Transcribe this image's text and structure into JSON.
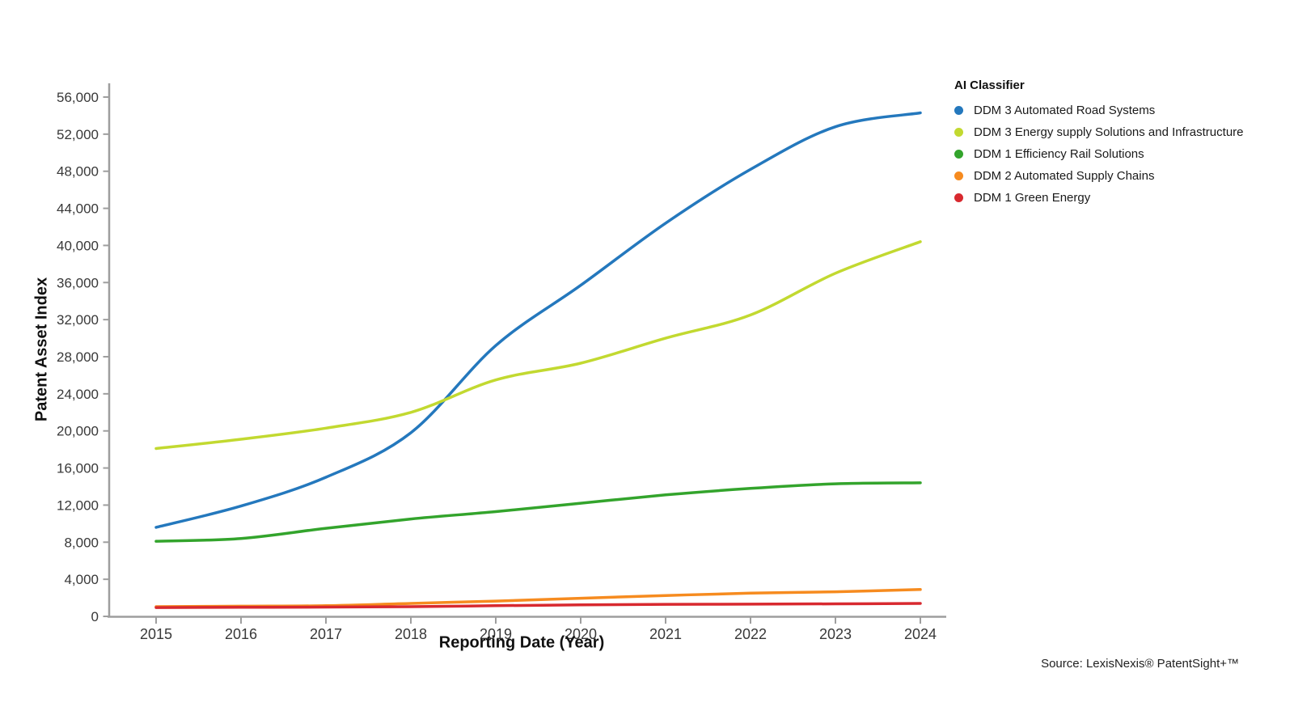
{
  "chart_data": {
    "type": "line",
    "title": "",
    "xlabel": "Reporting Date (Year)",
    "ylabel": "Patent Asset Index",
    "x": [
      2015,
      2016,
      2017,
      2018,
      2019,
      2020,
      2021,
      2022,
      2023,
      2024
    ],
    "ylim": [
      0,
      56000
    ],
    "ytick_step": 4000,
    "grid": false,
    "legend_title": "AI Classifier",
    "legend_position": "top-right",
    "series": [
      {
        "name": "DDM 3 Automated Road Systems",
        "color": "#2478BD",
        "values": [
          9600,
          11900,
          15000,
          19800,
          29200,
          35700,
          42400,
          48200,
          52800,
          54300
        ]
      },
      {
        "name": "DDM 3 Energy supply Solutions and Infrastructure",
        "color": "#C2D930",
        "values": [
          18100,
          19100,
          20300,
          22000,
          25500,
          27300,
          30000,
          32500,
          37000,
          40400
        ]
      },
      {
        "name": "DDM 1 Efficiency Rail Solutions",
        "color": "#33A42C",
        "values": [
          8100,
          8400,
          9500,
          10500,
          11300,
          12200,
          13100,
          13800,
          14300,
          14400
        ]
      },
      {
        "name": "DDM 2  Automated Supply Chains",
        "color": "#F68B1F",
        "values": [
          1050,
          1100,
          1150,
          1400,
          1650,
          1950,
          2250,
          2500,
          2650,
          2900
        ]
      },
      {
        "name": "DDM 1 Green Energy",
        "color": "#D8292F",
        "values": [
          950,
          980,
          1000,
          1050,
          1150,
          1250,
          1300,
          1320,
          1350,
          1400
        ]
      }
    ],
    "axis_color": "#9E9E9E",
    "source": "Source: LexisNexis® PatentSight+™"
  }
}
